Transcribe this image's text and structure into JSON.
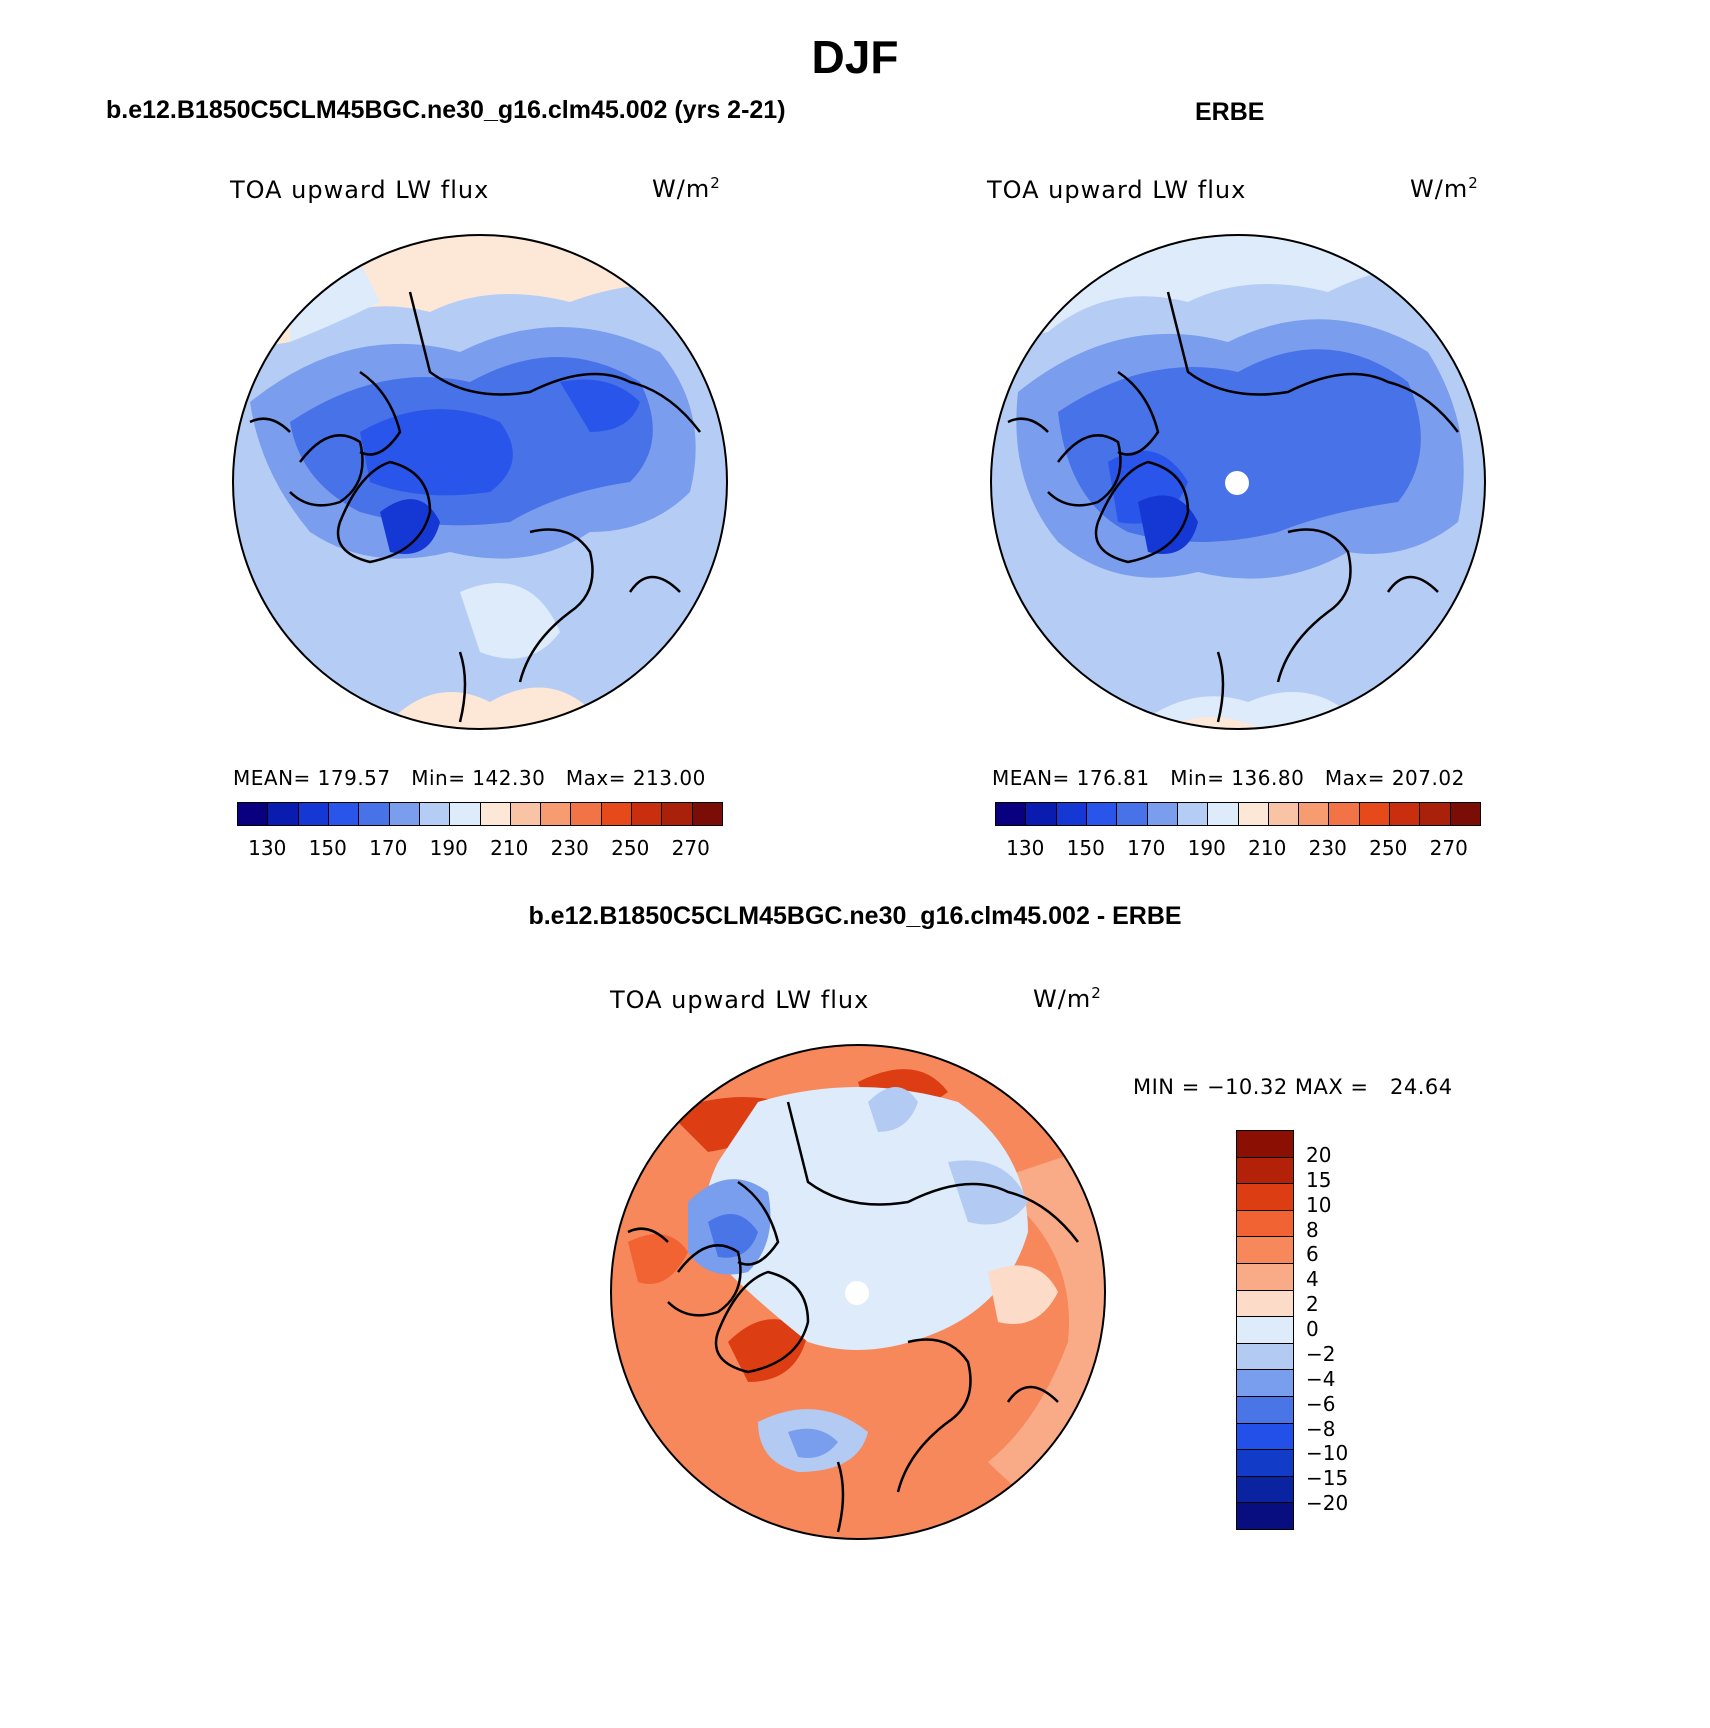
{
  "title": "DJF",
  "panels": {
    "left": {
      "case": "b.e12.B1850C5CLM45BGC.ne30_g16.clm45.002 (yrs 2-21)",
      "variable": "TOA upward LW flux",
      "units_base": "W/m",
      "units_exp": "2",
      "stats": "MEAN= 179.57   Min= 142.30   Max= 213.00"
    },
    "right": {
      "case": "ERBE",
      "variable": "TOA upward LW flux",
      "units_base": "W/m",
      "units_exp": "2",
      "stats": "MEAN= 176.81   Min= 136.80   Max= 207.02"
    },
    "diff": {
      "case": "b.e12.B1850C5CLM45BGC.ne30_g16.clm45.002 - ERBE",
      "variable": "TOA upward LW flux",
      "units_base": "W/m",
      "units_exp": "2",
      "stats": "MIN = −10.32 MAX =   24.64"
    }
  },
  "colorbar_abs": {
    "colors": [
      "#08007f",
      "#0a1cb0",
      "#1538d4",
      "#2a55ea",
      "#4872e8",
      "#7b9ded",
      "#b5cdf5",
      "#ddebfb",
      "#fde8d8",
      "#f9c4a6",
      "#f79b70",
      "#f27346",
      "#e64a1b",
      "#c92e0e",
      "#a9210a",
      "#7a0d05"
    ],
    "labels": [
      "130",
      "150",
      "170",
      "190",
      "210",
      "230",
      "250",
      "270"
    ]
  },
  "colorbar_diff": {
    "colors": [
      "#8b1003",
      "#b32208",
      "#dd3d13",
      "#f16332",
      "#f6885c",
      "#f9ab88",
      "#fcdcc8",
      "#ddebfb",
      "#b3cbf3",
      "#7a9eee",
      "#4a75e7",
      "#2350e8",
      "#123bc8",
      "#0a23a0",
      "#080d80"
    ],
    "labels": [
      "20",
      "15",
      "10",
      "8",
      "6",
      "4",
      "2",
      "0",
      "−2",
      "−4",
      "−6",
      "−8",
      "−10",
      "−15",
      "−20"
    ]
  },
  "maps": {
    "left_icon": "arctic-polar-map-model",
    "right_icon": "arctic-polar-map-erbe",
    "diff_icon": "arctic-polar-map-difference"
  }
}
